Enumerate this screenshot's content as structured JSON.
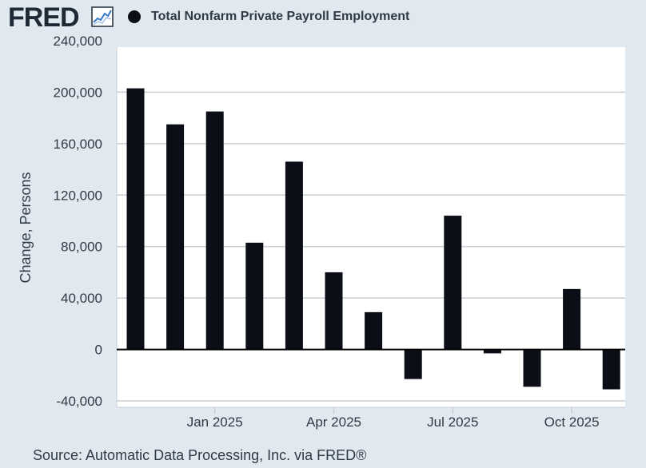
{
  "header": {
    "logo_text": "FRED",
    "logo_icon": "fred-line-chart-icon",
    "legend_label": "Total Nonfarm Private Payroll Employment"
  },
  "colors": {
    "background": "#e1e9f0",
    "plot_background": "#ffffff",
    "bar": "#0b0e17",
    "grid": "#c9cdd2",
    "text": "#303a44",
    "zero_line": "#000000"
  },
  "chart_data": {
    "type": "bar",
    "title": "",
    "xlabel": "",
    "ylabel": "Change, Persons",
    "ylim": [
      -40000,
      240000
    ],
    "grid": true,
    "yticks": [
      -40000,
      0,
      40000,
      80000,
      120000,
      160000,
      200000,
      240000
    ],
    "ytick_labels": [
      "-40,000",
      "0",
      "40,000",
      "80,000",
      "120,000",
      "160,000",
      "200,000",
      "240,000"
    ],
    "xticks": [
      "2025-01",
      "2025-04",
      "2025-07",
      "2025-10"
    ],
    "xtick_labels": [
      "Jan 2025",
      "Apr 2025",
      "Jul 2025",
      "Oct 2025"
    ],
    "categories": [
      "2024-11",
      "2024-12",
      "2025-01",
      "2025-02",
      "2025-03",
      "2025-04",
      "2025-05",
      "2025-06",
      "2025-07",
      "2025-08",
      "2025-09",
      "2025-10",
      "2025-11"
    ],
    "series": [
      {
        "name": "Total Nonfarm Private Payroll Employment",
        "values": [
          203000,
          175000,
          185000,
          83000,
          146000,
          60000,
          29000,
          -23000,
          104000,
          -3000,
          -29000,
          47000,
          -31000
        ]
      }
    ]
  },
  "source": "Source: Automatic Data Processing, Inc. via FRED®"
}
